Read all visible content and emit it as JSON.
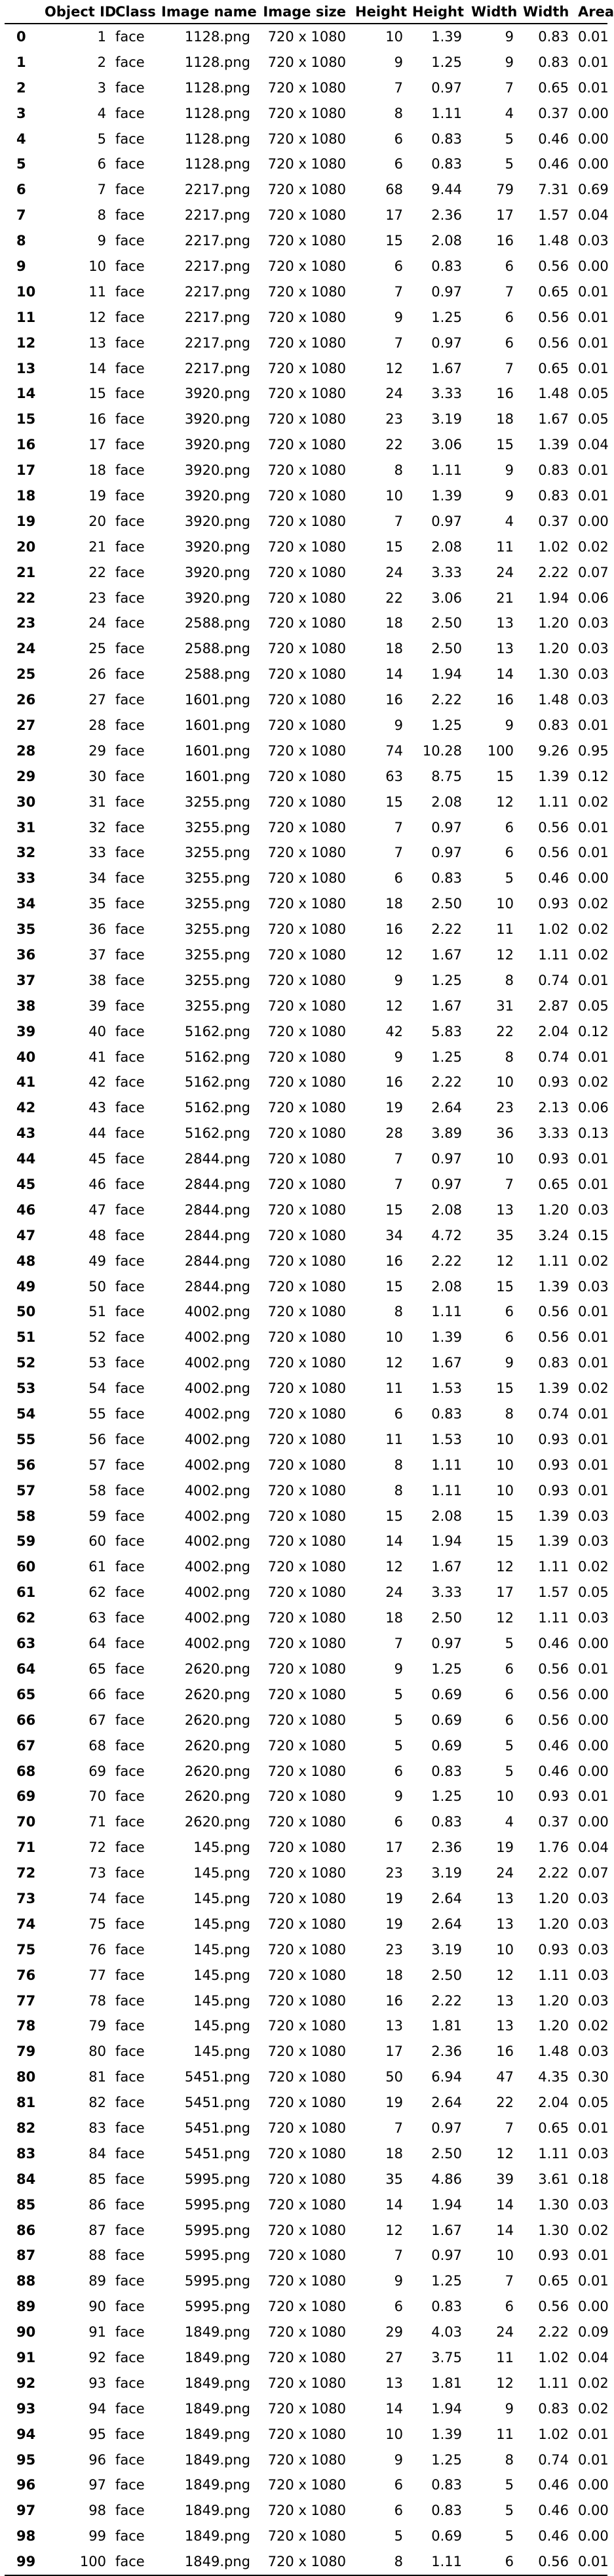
{
  "table": {
    "columns": [
      "",
      "Object ID",
      "Class",
      "Image name",
      "Image size",
      "Height",
      "Height",
      "Width",
      "Width",
      "Area"
    ],
    "rows": [
      [
        "0",
        "1",
        "face",
        "1128.png",
        "720 x 1080",
        "10",
        "1.39",
        "9",
        "0.83",
        "0.01"
      ],
      [
        "1",
        "2",
        "face",
        "1128.png",
        "720 x 1080",
        "9",
        "1.25",
        "9",
        "0.83",
        "0.01"
      ],
      [
        "2",
        "3",
        "face",
        "1128.png",
        "720 x 1080",
        "7",
        "0.97",
        "7",
        "0.65",
        "0.01"
      ],
      [
        "3",
        "4",
        "face",
        "1128.png",
        "720 x 1080",
        "8",
        "1.11",
        "4",
        "0.37",
        "0.00"
      ],
      [
        "4",
        "5",
        "face",
        "1128.png",
        "720 x 1080",
        "6",
        "0.83",
        "5",
        "0.46",
        "0.00"
      ],
      [
        "5",
        "6",
        "face",
        "1128.png",
        "720 x 1080",
        "6",
        "0.83",
        "5",
        "0.46",
        "0.00"
      ],
      [
        "6",
        "7",
        "face",
        "2217.png",
        "720 x 1080",
        "68",
        "9.44",
        "79",
        "7.31",
        "0.69"
      ],
      [
        "7",
        "8",
        "face",
        "2217.png",
        "720 x 1080",
        "17",
        "2.36",
        "17",
        "1.57",
        "0.04"
      ],
      [
        "8",
        "9",
        "face",
        "2217.png",
        "720 x 1080",
        "15",
        "2.08",
        "16",
        "1.48",
        "0.03"
      ],
      [
        "9",
        "10",
        "face",
        "2217.png",
        "720 x 1080",
        "6",
        "0.83",
        "6",
        "0.56",
        "0.00"
      ],
      [
        "10",
        "11",
        "face",
        "2217.png",
        "720 x 1080",
        "7",
        "0.97",
        "7",
        "0.65",
        "0.01"
      ],
      [
        "11",
        "12",
        "face",
        "2217.png",
        "720 x 1080",
        "9",
        "1.25",
        "6",
        "0.56",
        "0.01"
      ],
      [
        "12",
        "13",
        "face",
        "2217.png",
        "720 x 1080",
        "7",
        "0.97",
        "6",
        "0.56",
        "0.01"
      ],
      [
        "13",
        "14",
        "face",
        "2217.png",
        "720 x 1080",
        "12",
        "1.67",
        "7",
        "0.65",
        "0.01"
      ],
      [
        "14",
        "15",
        "face",
        "3920.png",
        "720 x 1080",
        "24",
        "3.33",
        "16",
        "1.48",
        "0.05"
      ],
      [
        "15",
        "16",
        "face",
        "3920.png",
        "720 x 1080",
        "23",
        "3.19",
        "18",
        "1.67",
        "0.05"
      ],
      [
        "16",
        "17",
        "face",
        "3920.png",
        "720 x 1080",
        "22",
        "3.06",
        "15",
        "1.39",
        "0.04"
      ],
      [
        "17",
        "18",
        "face",
        "3920.png",
        "720 x 1080",
        "8",
        "1.11",
        "9",
        "0.83",
        "0.01"
      ],
      [
        "18",
        "19",
        "face",
        "3920.png",
        "720 x 1080",
        "10",
        "1.39",
        "9",
        "0.83",
        "0.01"
      ],
      [
        "19",
        "20",
        "face",
        "3920.png",
        "720 x 1080",
        "7",
        "0.97",
        "4",
        "0.37",
        "0.00"
      ],
      [
        "20",
        "21",
        "face",
        "3920.png",
        "720 x 1080",
        "15",
        "2.08",
        "11",
        "1.02",
        "0.02"
      ],
      [
        "21",
        "22",
        "face",
        "3920.png",
        "720 x 1080",
        "24",
        "3.33",
        "24",
        "2.22",
        "0.07"
      ],
      [
        "22",
        "23",
        "face",
        "3920.png",
        "720 x 1080",
        "22",
        "3.06",
        "21",
        "1.94",
        "0.06"
      ],
      [
        "23",
        "24",
        "face",
        "2588.png",
        "720 x 1080",
        "18",
        "2.50",
        "13",
        "1.20",
        "0.03"
      ],
      [
        "24",
        "25",
        "face",
        "2588.png",
        "720 x 1080",
        "18",
        "2.50",
        "13",
        "1.20",
        "0.03"
      ],
      [
        "25",
        "26",
        "face",
        "2588.png",
        "720 x 1080",
        "14",
        "1.94",
        "14",
        "1.30",
        "0.03"
      ],
      [
        "26",
        "27",
        "face",
        "1601.png",
        "720 x 1080",
        "16",
        "2.22",
        "16",
        "1.48",
        "0.03"
      ],
      [
        "27",
        "28",
        "face",
        "1601.png",
        "720 x 1080",
        "9",
        "1.25",
        "9",
        "0.83",
        "0.01"
      ],
      [
        "28",
        "29",
        "face",
        "1601.png",
        "720 x 1080",
        "74",
        "10.28",
        "100",
        "9.26",
        "0.95"
      ],
      [
        "29",
        "30",
        "face",
        "1601.png",
        "720 x 1080",
        "63",
        "8.75",
        "15",
        "1.39",
        "0.12"
      ],
      [
        "30",
        "31",
        "face",
        "3255.png",
        "720 x 1080",
        "15",
        "2.08",
        "12",
        "1.11",
        "0.02"
      ],
      [
        "31",
        "32",
        "face",
        "3255.png",
        "720 x 1080",
        "7",
        "0.97",
        "6",
        "0.56",
        "0.01"
      ],
      [
        "32",
        "33",
        "face",
        "3255.png",
        "720 x 1080",
        "7",
        "0.97",
        "6",
        "0.56",
        "0.01"
      ],
      [
        "33",
        "34",
        "face",
        "3255.png",
        "720 x 1080",
        "6",
        "0.83",
        "5",
        "0.46",
        "0.00"
      ],
      [
        "34",
        "35",
        "face",
        "3255.png",
        "720 x 1080",
        "18",
        "2.50",
        "10",
        "0.93",
        "0.02"
      ],
      [
        "35",
        "36",
        "face",
        "3255.png",
        "720 x 1080",
        "16",
        "2.22",
        "11",
        "1.02",
        "0.02"
      ],
      [
        "36",
        "37",
        "face",
        "3255.png",
        "720 x 1080",
        "12",
        "1.67",
        "12",
        "1.11",
        "0.02"
      ],
      [
        "37",
        "38",
        "face",
        "3255.png",
        "720 x 1080",
        "9",
        "1.25",
        "8",
        "0.74",
        "0.01"
      ],
      [
        "38",
        "39",
        "face",
        "3255.png",
        "720 x 1080",
        "12",
        "1.67",
        "31",
        "2.87",
        "0.05"
      ],
      [
        "39",
        "40",
        "face",
        "5162.png",
        "720 x 1080",
        "42",
        "5.83",
        "22",
        "2.04",
        "0.12"
      ],
      [
        "40",
        "41",
        "face",
        "5162.png",
        "720 x 1080",
        "9",
        "1.25",
        "8",
        "0.74",
        "0.01"
      ],
      [
        "41",
        "42",
        "face",
        "5162.png",
        "720 x 1080",
        "16",
        "2.22",
        "10",
        "0.93",
        "0.02"
      ],
      [
        "42",
        "43",
        "face",
        "5162.png",
        "720 x 1080",
        "19",
        "2.64",
        "23",
        "2.13",
        "0.06"
      ],
      [
        "43",
        "44",
        "face",
        "5162.png",
        "720 x 1080",
        "28",
        "3.89",
        "36",
        "3.33",
        "0.13"
      ],
      [
        "44",
        "45",
        "face",
        "2844.png",
        "720 x 1080",
        "7",
        "0.97",
        "10",
        "0.93",
        "0.01"
      ],
      [
        "45",
        "46",
        "face",
        "2844.png",
        "720 x 1080",
        "7",
        "0.97",
        "7",
        "0.65",
        "0.01"
      ],
      [
        "46",
        "47",
        "face",
        "2844.png",
        "720 x 1080",
        "15",
        "2.08",
        "13",
        "1.20",
        "0.03"
      ],
      [
        "47",
        "48",
        "face",
        "2844.png",
        "720 x 1080",
        "34",
        "4.72",
        "35",
        "3.24",
        "0.15"
      ],
      [
        "48",
        "49",
        "face",
        "2844.png",
        "720 x 1080",
        "16",
        "2.22",
        "12",
        "1.11",
        "0.02"
      ],
      [
        "49",
        "50",
        "face",
        "2844.png",
        "720 x 1080",
        "15",
        "2.08",
        "15",
        "1.39",
        "0.03"
      ],
      [
        "50",
        "51",
        "face",
        "4002.png",
        "720 x 1080",
        "8",
        "1.11",
        "6",
        "0.56",
        "0.01"
      ],
      [
        "51",
        "52",
        "face",
        "4002.png",
        "720 x 1080",
        "10",
        "1.39",
        "6",
        "0.56",
        "0.01"
      ],
      [
        "52",
        "53",
        "face",
        "4002.png",
        "720 x 1080",
        "12",
        "1.67",
        "9",
        "0.83",
        "0.01"
      ],
      [
        "53",
        "54",
        "face",
        "4002.png",
        "720 x 1080",
        "11",
        "1.53",
        "15",
        "1.39",
        "0.02"
      ],
      [
        "54",
        "55",
        "face",
        "4002.png",
        "720 x 1080",
        "6",
        "0.83",
        "8",
        "0.74",
        "0.01"
      ],
      [
        "55",
        "56",
        "face",
        "4002.png",
        "720 x 1080",
        "11",
        "1.53",
        "10",
        "0.93",
        "0.01"
      ],
      [
        "56",
        "57",
        "face",
        "4002.png",
        "720 x 1080",
        "8",
        "1.11",
        "10",
        "0.93",
        "0.01"
      ],
      [
        "57",
        "58",
        "face",
        "4002.png",
        "720 x 1080",
        "8",
        "1.11",
        "10",
        "0.93",
        "0.01"
      ],
      [
        "58",
        "59",
        "face",
        "4002.png",
        "720 x 1080",
        "15",
        "2.08",
        "15",
        "1.39",
        "0.03"
      ],
      [
        "59",
        "60",
        "face",
        "4002.png",
        "720 x 1080",
        "14",
        "1.94",
        "15",
        "1.39",
        "0.03"
      ],
      [
        "60",
        "61",
        "face",
        "4002.png",
        "720 x 1080",
        "12",
        "1.67",
        "12",
        "1.11",
        "0.02"
      ],
      [
        "61",
        "62",
        "face",
        "4002.png",
        "720 x 1080",
        "24",
        "3.33",
        "17",
        "1.57",
        "0.05"
      ],
      [
        "62",
        "63",
        "face",
        "4002.png",
        "720 x 1080",
        "18",
        "2.50",
        "12",
        "1.11",
        "0.03"
      ],
      [
        "63",
        "64",
        "face",
        "4002.png",
        "720 x 1080",
        "7",
        "0.97",
        "5",
        "0.46",
        "0.00"
      ],
      [
        "64",
        "65",
        "face",
        "2620.png",
        "720 x 1080",
        "9",
        "1.25",
        "6",
        "0.56",
        "0.01"
      ],
      [
        "65",
        "66",
        "face",
        "2620.png",
        "720 x 1080",
        "5",
        "0.69",
        "6",
        "0.56",
        "0.00"
      ],
      [
        "66",
        "67",
        "face",
        "2620.png",
        "720 x 1080",
        "5",
        "0.69",
        "6",
        "0.56",
        "0.00"
      ],
      [
        "67",
        "68",
        "face",
        "2620.png",
        "720 x 1080",
        "5",
        "0.69",
        "5",
        "0.46",
        "0.00"
      ],
      [
        "68",
        "69",
        "face",
        "2620.png",
        "720 x 1080",
        "6",
        "0.83",
        "5",
        "0.46",
        "0.00"
      ],
      [
        "69",
        "70",
        "face",
        "2620.png",
        "720 x 1080",
        "9",
        "1.25",
        "10",
        "0.93",
        "0.01"
      ],
      [
        "70",
        "71",
        "face",
        "2620.png",
        "720 x 1080",
        "6",
        "0.83",
        "4",
        "0.37",
        "0.00"
      ],
      [
        "71",
        "72",
        "face",
        "145.png",
        "720 x 1080",
        "17",
        "2.36",
        "19",
        "1.76",
        "0.04"
      ],
      [
        "72",
        "73",
        "face",
        "145.png",
        "720 x 1080",
        "23",
        "3.19",
        "24",
        "2.22",
        "0.07"
      ],
      [
        "73",
        "74",
        "face",
        "145.png",
        "720 x 1080",
        "19",
        "2.64",
        "13",
        "1.20",
        "0.03"
      ],
      [
        "74",
        "75",
        "face",
        "145.png",
        "720 x 1080",
        "19",
        "2.64",
        "13",
        "1.20",
        "0.03"
      ],
      [
        "75",
        "76",
        "face",
        "145.png",
        "720 x 1080",
        "23",
        "3.19",
        "10",
        "0.93",
        "0.03"
      ],
      [
        "76",
        "77",
        "face",
        "145.png",
        "720 x 1080",
        "18",
        "2.50",
        "12",
        "1.11",
        "0.03"
      ],
      [
        "77",
        "78",
        "face",
        "145.png",
        "720 x 1080",
        "16",
        "2.22",
        "13",
        "1.20",
        "0.03"
      ],
      [
        "78",
        "79",
        "face",
        "145.png",
        "720 x 1080",
        "13",
        "1.81",
        "13",
        "1.20",
        "0.02"
      ],
      [
        "79",
        "80",
        "face",
        "145.png",
        "720 x 1080",
        "17",
        "2.36",
        "16",
        "1.48",
        "0.03"
      ],
      [
        "80",
        "81",
        "face",
        "5451.png",
        "720 x 1080",
        "50",
        "6.94",
        "47",
        "4.35",
        "0.30"
      ],
      [
        "81",
        "82",
        "face",
        "5451.png",
        "720 x 1080",
        "19",
        "2.64",
        "22",
        "2.04",
        "0.05"
      ],
      [
        "82",
        "83",
        "face",
        "5451.png",
        "720 x 1080",
        "7",
        "0.97",
        "7",
        "0.65",
        "0.01"
      ],
      [
        "83",
        "84",
        "face",
        "5451.png",
        "720 x 1080",
        "18",
        "2.50",
        "12",
        "1.11",
        "0.03"
      ],
      [
        "84",
        "85",
        "face",
        "5995.png",
        "720 x 1080",
        "35",
        "4.86",
        "39",
        "3.61",
        "0.18"
      ],
      [
        "85",
        "86",
        "face",
        "5995.png",
        "720 x 1080",
        "14",
        "1.94",
        "14",
        "1.30",
        "0.03"
      ],
      [
        "86",
        "87",
        "face",
        "5995.png",
        "720 x 1080",
        "12",
        "1.67",
        "14",
        "1.30",
        "0.02"
      ],
      [
        "87",
        "88",
        "face",
        "5995.png",
        "720 x 1080",
        "7",
        "0.97",
        "10",
        "0.93",
        "0.01"
      ],
      [
        "88",
        "89",
        "face",
        "5995.png",
        "720 x 1080",
        "9",
        "1.25",
        "7",
        "0.65",
        "0.01"
      ],
      [
        "89",
        "90",
        "face",
        "5995.png",
        "720 x 1080",
        "6",
        "0.83",
        "6",
        "0.56",
        "0.00"
      ],
      [
        "90",
        "91",
        "face",
        "1849.png",
        "720 x 1080",
        "29",
        "4.03",
        "24",
        "2.22",
        "0.09"
      ],
      [
        "91",
        "92",
        "face",
        "1849.png",
        "720 x 1080",
        "27",
        "3.75",
        "11",
        "1.02",
        "0.04"
      ],
      [
        "92",
        "93",
        "face",
        "1849.png",
        "720 x 1080",
        "13",
        "1.81",
        "12",
        "1.11",
        "0.02"
      ],
      [
        "93",
        "94",
        "face",
        "1849.png",
        "720 x 1080",
        "14",
        "1.94",
        "9",
        "0.83",
        "0.02"
      ],
      [
        "94",
        "95",
        "face",
        "1849.png",
        "720 x 1080",
        "10",
        "1.39",
        "11",
        "1.02",
        "0.01"
      ],
      [
        "95",
        "96",
        "face",
        "1849.png",
        "720 x 1080",
        "9",
        "1.25",
        "8",
        "0.74",
        "0.01"
      ],
      [
        "96",
        "97",
        "face",
        "1849.png",
        "720 x 1080",
        "6",
        "0.83",
        "5",
        "0.46",
        "0.00"
      ],
      [
        "97",
        "98",
        "face",
        "1849.png",
        "720 x 1080",
        "6",
        "0.83",
        "5",
        "0.46",
        "0.00"
      ],
      [
        "98",
        "99",
        "face",
        "1849.png",
        "720 x 1080",
        "5",
        "0.69",
        "5",
        "0.46",
        "0.00"
      ],
      [
        "99",
        "100",
        "face",
        "1849.png",
        "720 x 1080",
        "8",
        "1.11",
        "6",
        "0.56",
        "0.01"
      ]
    ]
  }
}
